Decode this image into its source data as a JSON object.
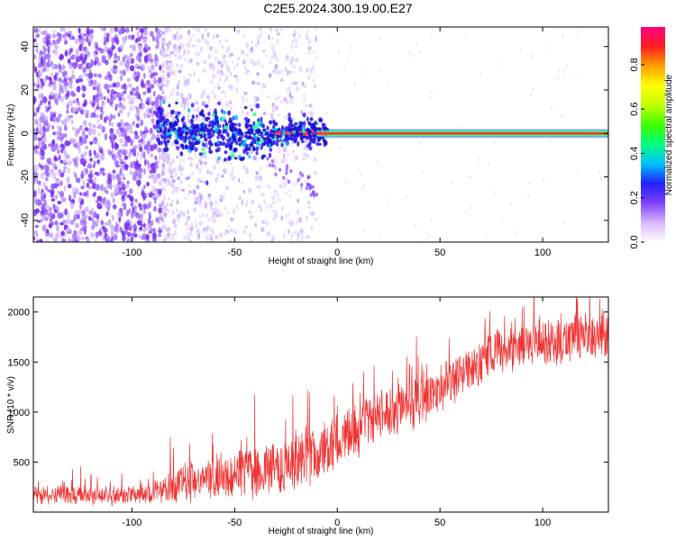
{
  "title": "C2E5.2024.300.19.00.E27",
  "chart_data": [
    {
      "type": "heatmap",
      "xlabel": "Height of straight line (km)",
      "ylabel": "Frequency (Hz)",
      "xlim": [
        -148,
        132
      ],
      "ylim": [
        -50,
        49
      ],
      "x_ticks": [
        -100,
        -50,
        0,
        50,
        100
      ],
      "x_tick_labels": [
        "-100",
        "-50",
        "0",
        "50",
        "100"
      ],
      "y_ticks": [
        -40,
        -20,
        0,
        20,
        40
      ],
      "y_tick_labels": [
        "-40",
        "-20",
        "0",
        "20",
        "40"
      ],
      "colorbar": {
        "label": "Normalized spectral amplitude",
        "range": [
          0,
          0.97
        ],
        "ticks": [
          0.0,
          0.2,
          0.4,
          0.6,
          0.8
        ],
        "tick_labels": [
          "0.0",
          "0.2",
          "0.4",
          "0.6",
          "0.8"
        ],
        "colormap": [
          "#ffffff",
          "#d8b8ff",
          "#8040ff",
          "#2020ff",
          "#00c0ff",
          "#00ff80",
          "#40ff00",
          "#c0ff00",
          "#ffff00",
          "#ffa000",
          "#ff2020",
          "#ff0080"
        ]
      },
      "features": {
        "diffuse_noise_region_x": [
          -148,
          -85
        ],
        "sparse_noise_region_x": [
          -85,
          -10
        ],
        "carrier_start_x": -88,
        "carrier_center_hz": 0,
        "carrier_stable_from_x": -10,
        "carrier_profile_x": [
          -88,
          -80,
          -70,
          -60,
          -50,
          -45,
          -40,
          -35,
          -30,
          -20,
          -10,
          0
        ],
        "carrier_profile_hz": [
          1,
          3,
          0,
          2,
          -1,
          -2,
          0,
          -3,
          -1,
          0,
          0,
          0
        ],
        "tail_x": [
          -35,
          -28,
          -15,
          -10
        ],
        "tail_hz": [
          -10,
          -16,
          -22,
          -32
        ]
      }
    },
    {
      "type": "line",
      "xlabel": "Height of straight line (km)",
      "ylabel": "SNR (10 * v/v)",
      "xlim": [
        -148,
        132
      ],
      "ylim": [
        0,
        2150
      ],
      "x_ticks": [
        -100,
        -50,
        0,
        50,
        100
      ],
      "x_tick_labels": [
        "-100",
        "-50",
        "0",
        "50",
        "100"
      ],
      "y_ticks": [
        500,
        1000,
        1500,
        2000
      ],
      "y_tick_labels": [
        "500",
        "1000",
        "1500",
        "2000"
      ],
      "line_color": "#ee3333",
      "series": [
        {
          "x": [
            -148,
            -130,
            -110,
            -90,
            -85,
            -78,
            -70,
            -60,
            -50,
            -40,
            -30,
            -20,
            -10,
            0,
            10,
            20,
            30,
            40,
            50,
            60,
            70,
            80,
            90,
            100,
            110,
            120,
            132
          ],
          "center": [
            170,
            170,
            170,
            185,
            220,
            300,
            320,
            360,
            390,
            410,
            440,
            510,
            600,
            720,
            850,
            960,
            1040,
            1130,
            1220,
            1360,
            1500,
            1630,
            1680,
            1700,
            1720,
            1750,
            1760
          ],
          "spread": [
            110,
            110,
            100,
            110,
            150,
            220,
            230,
            240,
            260,
            300,
            330,
            340,
            340,
            330,
            310,
            290,
            270,
            260,
            250,
            250,
            240,
            250,
            260,
            260,
            260,
            270,
            280
          ]
        }
      ]
    }
  ]
}
